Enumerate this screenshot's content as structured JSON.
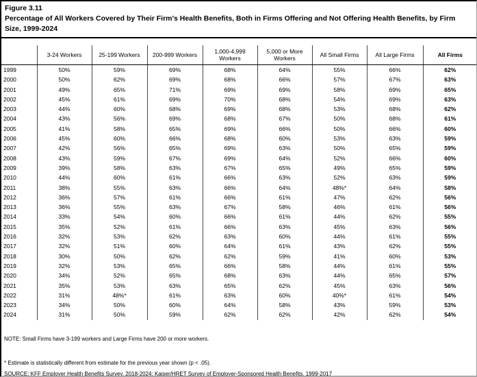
{
  "figure": {
    "label": "Figure 3.11",
    "title": "Percentage of All Workers Covered by Their Firm's Health Benefits, Both in Firms Offering and Not Offering Health Benefits, by Firm Size, 1999-2024"
  },
  "chart_data": {
    "type": "table",
    "columns": [
      "",
      "3-24 Workers",
      "25-199 Workers",
      "200-999 Workers",
      "1,000-4,999 Workers",
      "5,000 or More Workers",
      "All Small Firms",
      "All Large Firms",
      "All Firms"
    ],
    "rows": [
      [
        "1999",
        "50%",
        "59%",
        "69%",
        "68%",
        "64%",
        "55%",
        "66%",
        "62%"
      ],
      [
        "2000",
        "50%",
        "62%",
        "69%",
        "68%",
        "66%",
        "57%",
        "67%",
        "63%"
      ],
      [
        "2001",
        "49%",
        "65%",
        "71%",
        "69%",
        "69%",
        "58%",
        "69%",
        "65%"
      ],
      [
        "2002",
        "45%",
        "61%",
        "69%",
        "70%",
        "68%",
        "54%",
        "69%",
        "63%"
      ],
      [
        "2003",
        "44%",
        "60%",
        "68%",
        "69%",
        "68%",
        "53%",
        "68%",
        "62%"
      ],
      [
        "2004",
        "43%",
        "56%",
        "69%",
        "68%",
        "67%",
        "50%",
        "68%",
        "61%"
      ],
      [
        "2005",
        "41%",
        "58%",
        "65%",
        "69%",
        "66%",
        "50%",
        "66%",
        "60%"
      ],
      [
        "2006",
        "45%",
        "60%",
        "66%",
        "68%",
        "60%",
        "53%",
        "63%",
        "59%"
      ],
      [
        "2007",
        "42%",
        "56%",
        "65%",
        "69%",
        "63%",
        "50%",
        "65%",
        "59%"
      ],
      [
        "2008",
        "43%",
        "59%",
        "67%",
        "69%",
        "64%",
        "52%",
        "66%",
        "60%"
      ],
      [
        "2009",
        "39%",
        "58%",
        "63%",
        "67%",
        "65%",
        "49%",
        "65%",
        "59%"
      ],
      [
        "2010",
        "44%",
        "60%",
        "61%",
        "66%",
        "63%",
        "52%",
        "63%",
        "59%"
      ],
      [
        "2011",
        "38%",
        "55%",
        "63%",
        "66%",
        "64%",
        "48%*",
        "64%",
        "58%"
      ],
      [
        "2012",
        "36%",
        "57%",
        "61%",
        "66%",
        "61%",
        "47%",
        "62%",
        "56%"
      ],
      [
        "2013",
        "36%",
        "55%",
        "63%",
        "67%",
        "58%",
        "46%",
        "61%",
        "56%"
      ],
      [
        "2014",
        "33%",
        "54%",
        "60%",
        "66%",
        "61%",
        "44%",
        "62%",
        "55%"
      ],
      [
        "2015",
        "35%",
        "52%",
        "61%",
        "66%",
        "63%",
        "45%",
        "63%",
        "56%"
      ],
      [
        "2016",
        "32%",
        "53%",
        "62%",
        "63%",
        "60%",
        "44%",
        "61%",
        "55%"
      ],
      [
        "2017",
        "32%",
        "51%",
        "60%",
        "64%",
        "61%",
        "43%",
        "62%",
        "55%"
      ],
      [
        "2018",
        "30%",
        "50%",
        "62%",
        "62%",
        "59%",
        "41%",
        "60%",
        "53%"
      ],
      [
        "2019",
        "32%",
        "53%",
        "65%",
        "66%",
        "58%",
        "44%",
        "61%",
        "55%"
      ],
      [
        "2020",
        "34%",
        "52%",
        "65%",
        "68%",
        "63%",
        "44%",
        "65%",
        "57%"
      ],
      [
        "2021",
        "35%",
        "53%",
        "63%",
        "65%",
        "62%",
        "45%",
        "63%",
        "56%"
      ],
      [
        "2022",
        "31%",
        "48%*",
        "61%",
        "63%",
        "60%",
        "40%*",
        "61%",
        "54%"
      ],
      [
        "2023",
        "34%",
        "50%",
        "60%",
        "64%",
        "58%",
        "43%",
        "59%",
        "53%"
      ],
      [
        "2024",
        "31%",
        "50%",
        "59%",
        "62%",
        "62%",
        "42%",
        "62%",
        "54%"
      ]
    ],
    "title": "Percentage of All Workers Covered by Their Firm's Health Benefits, Both in Firms Offering and Not Offering Health Benefits, by Firm Size, 1999-2024"
  },
  "notes": {
    "note": "NOTE: Small Firms have 3-199 workers and Large Firms have 200 or more workers.",
    "asterisk": "* Estimate is statistically different from estimate for the previous year shown (p < .05).",
    "source": "SOURCE: KFF Employer Health Benefits Survey, 2018-2024; Kaiser/HRET Survey of Employer-Sponsored Health Benefits, 1999-2017"
  }
}
